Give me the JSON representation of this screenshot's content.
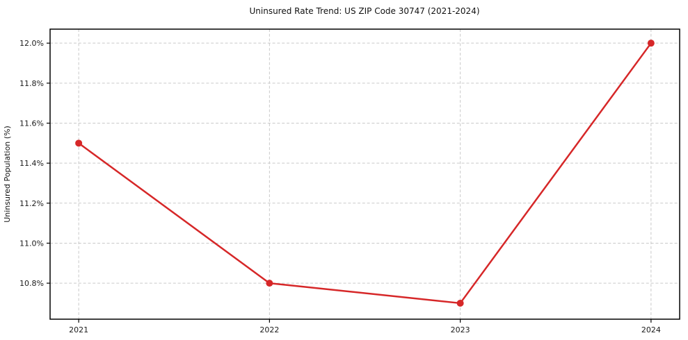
{
  "chart_data": {
    "type": "line",
    "title": "Uninsured Rate Trend: US ZIP Code 30747 (2021-2024)",
    "xlabel": "",
    "ylabel": "Uninsured Population (%)",
    "x": [
      2021,
      2022,
      2023,
      2024
    ],
    "values": [
      11.5,
      10.8,
      10.7,
      12.0
    ],
    "xtick_labels": [
      "2021",
      "2022",
      "2023",
      "2024"
    ],
    "yticks": [
      10.8,
      11.0,
      11.2,
      11.4,
      11.6,
      11.8,
      12.0
    ],
    "ytick_labels": [
      "10.8%",
      "11.0%",
      "11.2%",
      "11.4%",
      "11.6%",
      "11.8%",
      "12.0%"
    ],
    "xlim": [
      2020.85,
      2024.15
    ],
    "ylim": [
      10.62,
      12.07
    ],
    "grid": true,
    "grid_style": "dashed",
    "legend": "none",
    "line_color": "#d62728",
    "marker": "circle",
    "marker_radius": 5,
    "background": "#ffffff"
  }
}
